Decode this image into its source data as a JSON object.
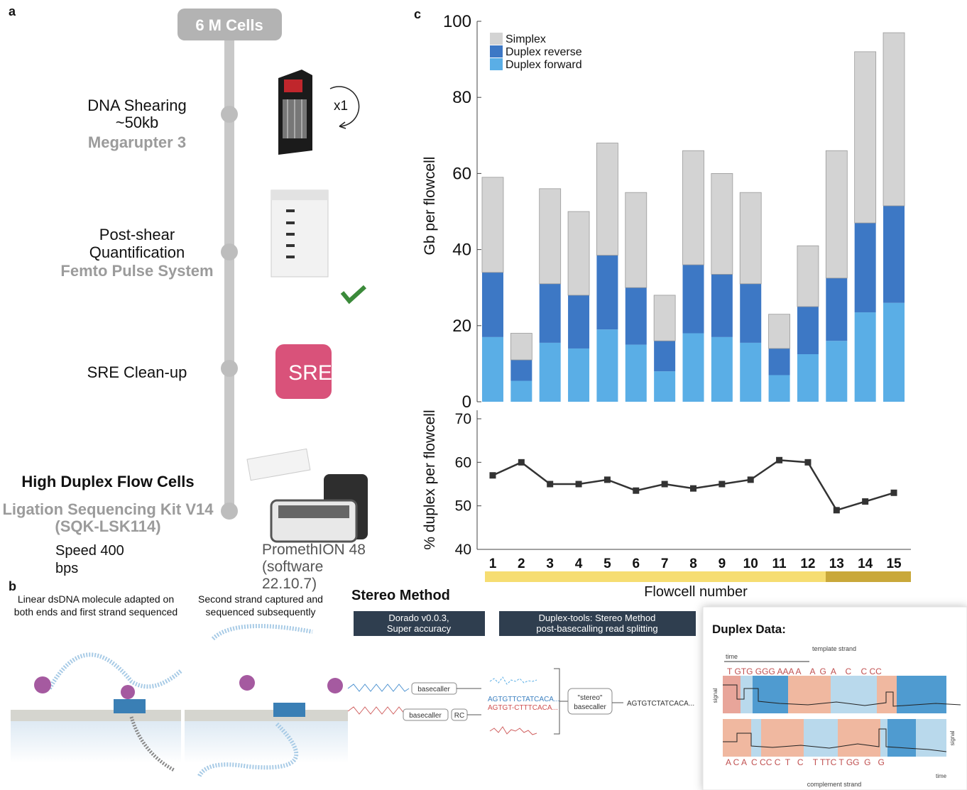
{
  "panel_a": {
    "letter": "a",
    "start": "6 M Cells",
    "shearing": [
      "DNA Shearing",
      "~50kb"
    ],
    "shearing_device": "Megarupter 3",
    "cycles": "x1",
    "quantification": [
      "Post-shear",
      "Quantification"
    ],
    "quantification_device": "Femto Pulse System",
    "cleanup": "SRE Clean-up",
    "cleanup_icon": "SRE",
    "flow_cells": "High Duplex Flow Cells",
    "kit": [
      "Ligation Sequencing Kit V14",
      "(SQK-LSK114)"
    ],
    "speed": [
      "Speed 400",
      "bps"
    ],
    "sequencer": [
      "PromethION 48",
      "(software",
      "22.10.7)"
    ]
  },
  "panel_b": {
    "letter": "b",
    "step1": [
      "Linear dsDNA molecule adapted on",
      "both ends and first strand sequenced"
    ],
    "step2": [
      "Second strand captured and",
      "sequenced subsequently"
    ],
    "method_title": "Stereo Method",
    "box1": [
      "Dorado v0.0.3,",
      "Super accuracy"
    ],
    "box2": [
      "Duplex-tools: Stereo Method",
      "post-basecalling read splitting"
    ],
    "basecaller": "basecaller",
    "rc": "RC",
    "read_template": "AGTGTTCTATCACA...",
    "read_complement": "AGTGT-CTTTCACA...",
    "stereo_basecaller": [
      "\"stereo\"",
      "basecaller"
    ],
    "duplex_read": "AGTGTCTATCACA...",
    "duplex_title": "Duplex Data:",
    "template_strand": "template strand",
    "complement_strand": "complement strand",
    "time": "time",
    "signal": "signal",
    "template_sequence": "T GTG GGG AAA A    A  G  A    C    C CC",
    "complement_sequence": "A C A  C CC C  T   C    T TTC T GG  G   G"
  },
  "chart_data": [
    {
      "type": "bar",
      "panel_label": "c",
      "stacked": true,
      "ylabel": "Gb per flowcell",
      "ylim": [
        0,
        100
      ],
      "yticks": [
        0,
        20,
        40,
        60,
        80,
        100
      ],
      "legend": "upper left",
      "series": [
        {
          "name": "Simplex",
          "color": "#d3d3d3",
          "values": [
            25,
            7,
            25,
            22,
            29.5,
            25,
            12,
            30,
            26.5,
            24,
            9,
            16,
            33.5,
            45,
            45.5
          ]
        },
        {
          "name": "Duplex reverse",
          "color": "#3d78c5",
          "values": [
            17,
            5.5,
            15.5,
            14,
            19.5,
            15,
            8,
            18,
            16.5,
            15.5,
            7,
            12.5,
            16.5,
            23.5,
            25.5
          ]
        },
        {
          "name": "Duplex forward",
          "color": "#5aaee6",
          "values": [
            17,
            5.5,
            15.5,
            14,
            19,
            15,
            8,
            18,
            17,
            15.5,
            7,
            12.5,
            16,
            23.5,
            26
          ]
        }
      ]
    },
    {
      "type": "line",
      "ylabel": "% duplex per flowcell",
      "xlabel": "Flowcell number",
      "categories": [
        "1",
        "2",
        "3",
        "4",
        "5",
        "6",
        "7",
        "8",
        "9",
        "10",
        "11",
        "12",
        "13",
        "14",
        "15"
      ],
      "values": [
        57,
        60,
        55,
        55,
        56,
        53.5,
        55,
        54,
        55,
        56,
        60.5,
        60,
        49,
        51,
        53
      ],
      "color": "#333333",
      "ylim": [
        40,
        70
      ],
      "yticks": [
        40,
        50,
        60,
        70
      ]
    }
  ]
}
